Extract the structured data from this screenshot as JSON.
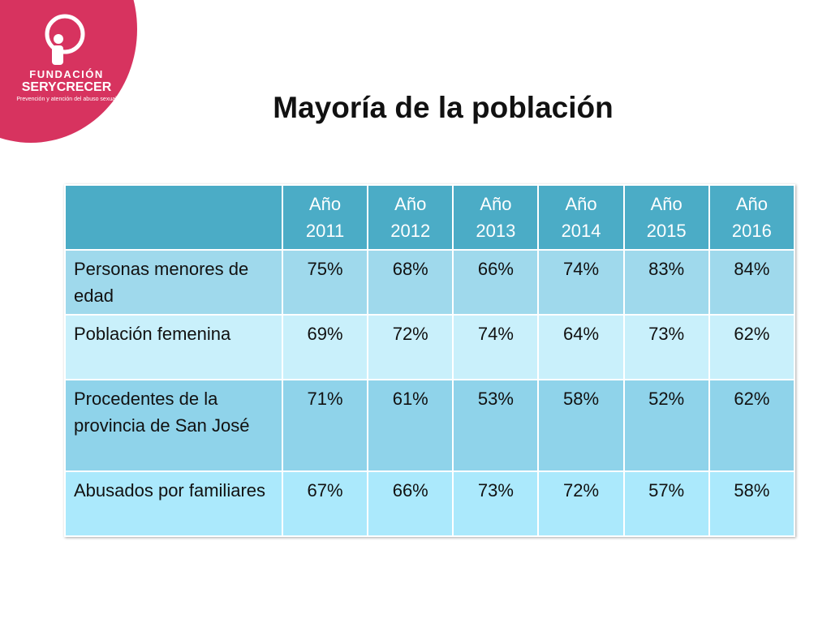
{
  "logo": {
    "name": "FUNDACIÓN",
    "brand": "SERYCRECER",
    "tagline": "Prevención y atención del abuso sexual"
  },
  "title": "Mayoría de la población",
  "table": {
    "header": [
      "Año 2011",
      "Año 2012",
      "Año 2013",
      "Año 2014",
      "Año 2015",
      "Año 2016"
    ],
    "rows": [
      [
        "Personas menores de edad",
        "75%",
        "68%",
        "66%",
        "74%",
        "83%",
        "84%"
      ],
      [
        "Población femenina",
        "69%",
        "72%",
        "74%",
        "64%",
        "73%",
        "62%"
      ],
      [
        "Procedentes de la provincia de  San José",
        "71%",
        "61%",
        "53%",
        "58%",
        "52%",
        "62%"
      ],
      [
        "Abusados por familiares",
        "67%",
        "66%",
        "73%",
        "72%",
        "57%",
        "58%"
      ]
    ]
  }
}
